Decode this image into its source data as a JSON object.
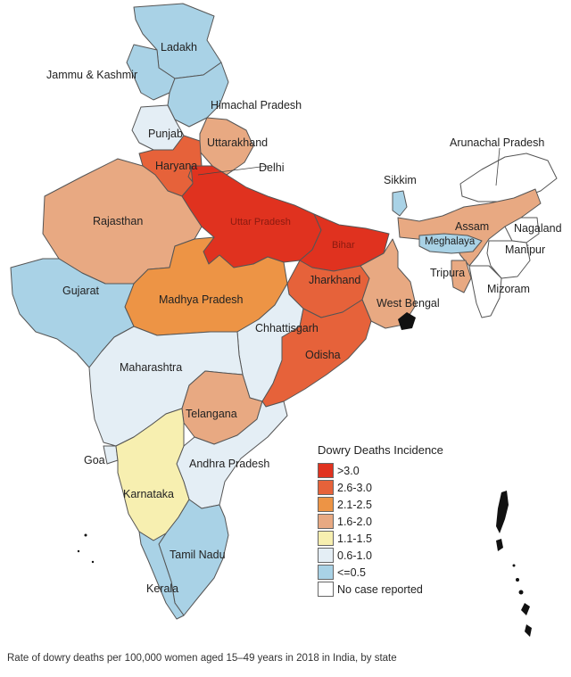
{
  "caption": "Rate of dowry deaths per 100,000 women aged 15–49 years in 2018 in India, by state",
  "legend": {
    "title": "Dowry Deaths Incidence",
    "items": [
      {
        "label": ">3.0",
        "color": "#e0321f"
      },
      {
        "label": "2.6-3.0",
        "color": "#e6623a"
      },
      {
        "label": "2.1-2.5",
        "color": "#ed9445"
      },
      {
        "label": "1.6-2.0",
        "color": "#e8a982"
      },
      {
        "label": "1.1-1.5",
        "color": "#f7efb0"
      },
      {
        "label": "0.6-1.0",
        "color": "#e4eef5"
      },
      {
        "label": "<=0.5",
        "color": "#a9d2e6"
      },
      {
        "label": "No case reported",
        "color": "#ffffff"
      }
    ]
  },
  "states": {
    "ladakh": {
      "label": "Ladakh",
      "category": "<=0.5"
    },
    "jk": {
      "label": "Jammu & Kashmir",
      "category": "<=0.5"
    },
    "himachal": {
      "label": "Himachal Pradesh",
      "category": "<=0.5"
    },
    "punjab": {
      "label": "Punjab",
      "category": "0.6-1.0"
    },
    "uttarakhand": {
      "label": "Uttarakhand",
      "category": "1.6-2.0"
    },
    "haryana": {
      "label": "Haryana",
      "category": "2.6-3.0"
    },
    "delhi": {
      "label": "Delhi",
      "category": "2.6-3.0"
    },
    "rajasthan": {
      "label": "Rajasthan",
      "category": "1.6-2.0"
    },
    "up": {
      "label": "Uttar Pradesh",
      "category": ">3.0"
    },
    "bihar": {
      "label": "Bihar",
      "category": ">3.0"
    },
    "sikkim": {
      "label": "Sikkim",
      "category": "<=0.5"
    },
    "arunachal": {
      "label": "Arunachal Pradesh",
      "category": "No case reported"
    },
    "assam": {
      "label": "Assam",
      "category": "1.6-2.0"
    },
    "nagaland": {
      "label": "Nagaland",
      "category": "No case reported"
    },
    "meghalaya": {
      "label": "Meghalaya",
      "category": "<=0.5"
    },
    "manipur": {
      "label": "Manipur",
      "category": "No case reported"
    },
    "tripura": {
      "label": "Tripura",
      "category": "1.6-2.0"
    },
    "mizoram": {
      "label": "Mizoram",
      "category": "No case reported"
    },
    "gujarat": {
      "label": "Gujarat",
      "category": "<=0.5"
    },
    "mp": {
      "label": "Madhya Pradesh",
      "category": "2.1-2.5"
    },
    "jharkhand": {
      "label": "Jharkhand",
      "category": "2.6-3.0"
    },
    "westbengal": {
      "label": "West Bengal",
      "category": "1.6-2.0"
    },
    "chhattisgarh": {
      "label": "Chhattisgarh",
      "category": "0.6-1.0"
    },
    "odisha": {
      "label": "Odisha",
      "category": "2.6-3.0"
    },
    "maharashtra": {
      "label": "Maharashtra",
      "category": "0.6-1.0"
    },
    "telangana": {
      "label": "Telangana",
      "category": "1.6-2.0"
    },
    "goa": {
      "label": "Goa",
      "category": "0.6-1.0"
    },
    "andhra": {
      "label": "Andhra Pradesh",
      "category": "0.6-1.0"
    },
    "karnataka": {
      "label": "Karnataka",
      "category": "1.1-1.5"
    },
    "tamilnadu": {
      "label": "Tamil Nadu",
      "category": "<=0.5"
    },
    "kerala": {
      "label": "Kerala",
      "category": "<=0.5"
    }
  }
}
